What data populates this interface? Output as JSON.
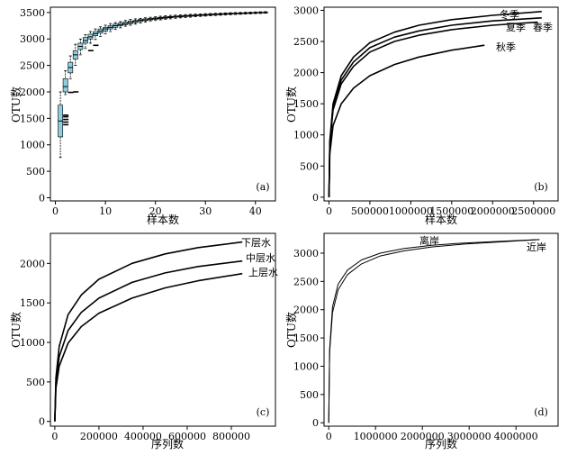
{
  "chart_data": [
    {
      "panel_label": "(a)",
      "type": "box",
      "xlabel": "样本数",
      "ylabel": "OTU数",
      "xlim": [
        -1,
        44
      ],
      "ylim": [
        -60,
        3600
      ],
      "xticks": [
        0,
        10,
        20,
        30,
        40
      ],
      "yticks": [
        0,
        500,
        1000,
        1500,
        2000,
        2500,
        3000,
        3500
      ],
      "box_color": "#8ecfdf",
      "boxes": [
        {
          "x": 1,
          "q1": 1150,
          "median": 1450,
          "q3": 1750,
          "lo": 760,
          "hi": 2000,
          "outliers": [
            1380,
            1430,
            1480,
            1530,
            1560
          ]
        },
        {
          "x": 2,
          "q1": 2000,
          "median": 2100,
          "q3": 2250,
          "lo": 1950,
          "hi": 2400,
          "outliers": [
            1990
          ]
        },
        {
          "x": 3,
          "q1": 2360,
          "median": 2460,
          "q3": 2560,
          "lo": 2250,
          "hi": 2680,
          "outliers": [
            2000
          ]
        },
        {
          "x": 4,
          "q1": 2620,
          "median": 2700,
          "q3": 2780,
          "lo": 2500,
          "hi": 2900,
          "outliers": []
        },
        {
          "x": 5,
          "q1": 2800,
          "median": 2860,
          "q3": 2920,
          "lo": 2700,
          "hi": 3000,
          "outliers": []
        },
        {
          "x": 6,
          "q1": 2920,
          "median": 2970,
          "q3": 3030,
          "lo": 2820,
          "hi": 3080,
          "outliers": [
            2780
          ]
        },
        {
          "x": 7,
          "q1": 3000,
          "median": 3040,
          "q3": 3090,
          "lo": 2920,
          "hi": 3140,
          "outliers": [
            2880
          ]
        },
        {
          "x": 8,
          "q1": 3060,
          "median": 3100,
          "q3": 3140,
          "lo": 2990,
          "hi": 3190,
          "outliers": []
        },
        {
          "x": 9,
          "q1": 3110,
          "median": 3150,
          "q3": 3190,
          "lo": 3050,
          "hi": 3230,
          "outliers": []
        },
        {
          "x": 10,
          "q1": 3150,
          "median": 3190,
          "q3": 3220,
          "lo": 3100,
          "hi": 3260,
          "outliers": []
        },
        {
          "x": 11,
          "q1": 3190,
          "median": 3220,
          "q3": 3250,
          "lo": 3140,
          "hi": 3290,
          "outliers": []
        },
        {
          "x": 12,
          "q1": 3220,
          "median": 3250,
          "q3": 3280,
          "lo": 3180,
          "hi": 3310,
          "outliers": []
        },
        {
          "x": 13,
          "q1": 3250,
          "median": 3270,
          "q3": 3300,
          "lo": 3210,
          "hi": 3330,
          "outliers": []
        },
        {
          "x": 14,
          "q1": 3270,
          "median": 3290,
          "q3": 3320,
          "lo": 3240,
          "hi": 3350,
          "outliers": []
        },
        {
          "x": 15,
          "q1": 3290,
          "median": 3310,
          "q3": 3340,
          "lo": 3260,
          "hi": 3370,
          "outliers": []
        },
        {
          "x": 16,
          "q1": 3310,
          "median": 3330,
          "q3": 3350,
          "lo": 3280,
          "hi": 3380,
          "outliers": []
        },
        {
          "x": 17,
          "q1": 3330,
          "median": 3350,
          "q3": 3370,
          "lo": 3300,
          "hi": 3390,
          "outliers": []
        },
        {
          "x": 18,
          "q1": 3345,
          "median": 3360,
          "q3": 3380,
          "lo": 3320,
          "hi": 3400,
          "outliers": []
        },
        {
          "x": 19,
          "q1": 3360,
          "median": 3375,
          "q3": 3390,
          "lo": 3340,
          "hi": 3410,
          "outliers": []
        },
        {
          "x": 20,
          "q1": 3370,
          "median": 3385,
          "q3": 3400,
          "lo": 3350,
          "hi": 3420,
          "outliers": []
        },
        {
          "x": 21,
          "q1": 3380,
          "median": 3395,
          "q3": 3410,
          "lo": 3360,
          "hi": 3430,
          "outliers": []
        },
        {
          "x": 22,
          "q1": 3390,
          "median": 3405,
          "q3": 3420,
          "lo": 3370,
          "hi": 3440,
          "outliers": []
        },
        {
          "x": 23,
          "q1": 3400,
          "median": 3412,
          "q3": 3425,
          "lo": 3380,
          "hi": 3445,
          "outliers": []
        },
        {
          "x": 24,
          "q1": 3410,
          "median": 3420,
          "q3": 3432,
          "lo": 3390,
          "hi": 3450,
          "outliers": []
        },
        {
          "x": 25,
          "q1": 3415,
          "median": 3427,
          "q3": 3440,
          "lo": 3398,
          "hi": 3455,
          "outliers": []
        },
        {
          "x": 26,
          "q1": 3422,
          "median": 3433,
          "q3": 3445,
          "lo": 3405,
          "hi": 3460,
          "outliers": []
        },
        {
          "x": 27,
          "q1": 3428,
          "median": 3440,
          "q3": 3450,
          "lo": 3412,
          "hi": 3465,
          "outliers": []
        },
        {
          "x": 28,
          "q1": 3434,
          "median": 3445,
          "q3": 3455,
          "lo": 3420,
          "hi": 3470,
          "outliers": []
        },
        {
          "x": 29,
          "q1": 3440,
          "median": 3450,
          "q3": 3460,
          "lo": 3426,
          "hi": 3474,
          "outliers": []
        },
        {
          "x": 30,
          "q1": 3445,
          "median": 3455,
          "q3": 3465,
          "lo": 3432,
          "hi": 3478,
          "outliers": []
        },
        {
          "x": 31,
          "q1": 3450,
          "median": 3460,
          "q3": 3470,
          "lo": 3438,
          "hi": 3482,
          "outliers": []
        },
        {
          "x": 32,
          "q1": 3455,
          "median": 3465,
          "q3": 3474,
          "lo": 3443,
          "hi": 3486,
          "outliers": []
        },
        {
          "x": 33,
          "q1": 3460,
          "median": 3469,
          "q3": 3478,
          "lo": 3448,
          "hi": 3490,
          "outliers": []
        },
        {
          "x": 34,
          "q1": 3464,
          "median": 3473,
          "q3": 3482,
          "lo": 3453,
          "hi": 3493,
          "outliers": []
        },
        {
          "x": 35,
          "q1": 3468,
          "median": 3477,
          "q3": 3486,
          "lo": 3458,
          "hi": 3496,
          "outliers": []
        },
        {
          "x": 36,
          "q1": 3472,
          "median": 3481,
          "q3": 3489,
          "lo": 3462,
          "hi": 3499,
          "outliers": []
        },
        {
          "x": 37,
          "q1": 3476,
          "median": 3484,
          "q3": 3492,
          "lo": 3466,
          "hi": 3502,
          "outliers": []
        },
        {
          "x": 38,
          "q1": 3480,
          "median": 3487,
          "q3": 3495,
          "lo": 3470,
          "hi": 3505,
          "outliers": []
        },
        {
          "x": 39,
          "q1": 3483,
          "median": 3490,
          "q3": 3498,
          "lo": 3474,
          "hi": 3508,
          "outliers": []
        },
        {
          "x": 40,
          "q1": 3487,
          "median": 3494,
          "q3": 3501,
          "lo": 3478,
          "hi": 3511,
          "outliers": []
        },
        {
          "x": 41,
          "q1": 3490,
          "median": 3497,
          "q3": 3504,
          "lo": 3482,
          "hi": 3514,
          "outliers": []
        },
        {
          "x": 42,
          "q1": 3493,
          "median": 3500,
          "q3": 3507,
          "lo": 3486,
          "hi": 3517,
          "outliers": []
        }
      ]
    },
    {
      "panel_label": "(b)",
      "type": "line",
      "xlabel": "样本数",
      "ylabel": "OTU数",
      "xlim": [
        -60000,
        2800000
      ],
      "ylim": [
        -60,
        3050
      ],
      "xticks": [
        0,
        500000,
        1000000,
        1500000,
        2000000,
        2500000
      ],
      "yticks": [
        0,
        500,
        1000,
        1500,
        2000,
        2500,
        3000
      ],
      "series": [
        {
          "name": "冬季",
          "x": [
            0,
            10000,
            50000,
            150000,
            300000,
            500000,
            800000,
            1100000,
            1500000,
            2000000,
            2600000
          ],
          "values": [
            0,
            900,
            1500,
            1950,
            2250,
            2480,
            2650,
            2760,
            2850,
            2920,
            2980
          ]
        },
        {
          "name": "夏季",
          "x": [
            0,
            10000,
            50000,
            150000,
            300000,
            500000,
            800000,
            1100000,
            1500000,
            2000000,
            2600000
          ],
          "values": [
            0,
            870,
            1450,
            1880,
            2170,
            2400,
            2570,
            2670,
            2760,
            2830,
            2880
          ]
        },
        {
          "name": "春季",
          "x": [
            0,
            10000,
            50000,
            150000,
            300000,
            500000,
            800000,
            1100000,
            1500000,
            2000000,
            2550000
          ],
          "values": [
            0,
            850,
            1400,
            1820,
            2100,
            2330,
            2500,
            2600,
            2690,
            2760,
            2810
          ]
        },
        {
          "name": "秋季",
          "x": [
            0,
            10000,
            50000,
            150000,
            300000,
            500000,
            800000,
            1100000,
            1500000,
            1900000
          ],
          "values": [
            0,
            700,
            1150,
            1500,
            1750,
            1950,
            2130,
            2250,
            2360,
            2440
          ]
        }
      ]
    },
    {
      "panel_label": "(c)",
      "type": "line",
      "xlabel": "序列数",
      "ylabel": "OTU数",
      "xlim": [
        -20000,
        1000000
      ],
      "ylim": [
        -60,
        2380
      ],
      "xticks": [
        0,
        200000,
        400000,
        600000,
        800000
      ],
      "yticks": [
        0,
        500,
        1000,
        1500,
        2000
      ],
      "series": [
        {
          "name": "下层水",
          "x": [
            0,
            5000,
            20000,
            60000,
            120000,
            200000,
            350000,
            500000,
            650000,
            850000
          ],
          "values": [
            0,
            550,
            950,
            1350,
            1600,
            1800,
            2000,
            2120,
            2200,
            2270
          ]
        },
        {
          "name": "中层水",
          "x": [
            0,
            5000,
            20000,
            60000,
            120000,
            200000,
            350000,
            500000,
            650000,
            850000
          ],
          "values": [
            0,
            480,
            820,
            1150,
            1380,
            1560,
            1760,
            1880,
            1960,
            2030
          ]
        },
        {
          "name": "上层水",
          "x": [
            0,
            5000,
            20000,
            60000,
            120000,
            200000,
            350000,
            500000,
            650000,
            850000
          ],
          "values": [
            0,
            420,
            700,
            990,
            1200,
            1370,
            1560,
            1690,
            1780,
            1870
          ]
        }
      ]
    },
    {
      "panel_label": "(d)",
      "type": "line",
      "xlabel": "序列数",
      "ylabel": "OTU数",
      "xlim": [
        -100000,
        4900000
      ],
      "ylim": [
        -60,
        3350
      ],
      "xticks": [
        0,
        1000000,
        2000000,
        3000000,
        4000000
      ],
      "yticks": [
        0,
        500,
        1000,
        1500,
        2000,
        2500,
        3000
      ],
      "series": [
        {
          "name": "离岸",
          "x": [
            0,
            20000,
            80000,
            200000,
            400000,
            700000,
            1100000,
            1600000,
            2200000,
            2900000,
            3700000,
            4500000
          ],
          "values": [
            0,
            1300,
            2050,
            2450,
            2700,
            2880,
            3000,
            3080,
            3140,
            3180,
            3210,
            3240
          ]
        },
        {
          "name": "近岸",
          "x": [
            0,
            20000,
            80000,
            200000,
            400000,
            700000,
            1100000,
            1600000,
            2200000,
            2900000,
            3700000,
            4500000
          ],
          "values": [
            0,
            1250,
            1950,
            2350,
            2620,
            2810,
            2950,
            3040,
            3110,
            3160,
            3200,
            3240
          ]
        }
      ]
    }
  ]
}
